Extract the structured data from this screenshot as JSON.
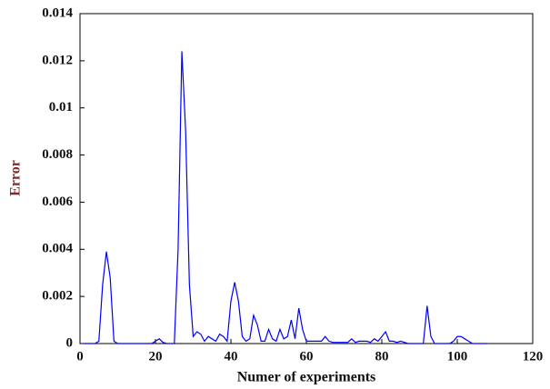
{
  "chart_data": {
    "type": "line",
    "xlabel": "Numer of experiments",
    "ylabel": "Error",
    "x": [
      1,
      2,
      3,
      4,
      5,
      6,
      7,
      8,
      9,
      10,
      11,
      12,
      13,
      14,
      15,
      16,
      17,
      18,
      19,
      20,
      21,
      22,
      23,
      24,
      25,
      26,
      27,
      28,
      29,
      30,
      31,
      32,
      33,
      34,
      35,
      36,
      37,
      38,
      39,
      40,
      41,
      42,
      43,
      44,
      45,
      46,
      47,
      48,
      49,
      50,
      51,
      52,
      53,
      54,
      55,
      56,
      57,
      58,
      59,
      60,
      61,
      62,
      63,
      64,
      65,
      66,
      67,
      68,
      69,
      70,
      71,
      72,
      73,
      74,
      75,
      76,
      77,
      78,
      79,
      80,
      81,
      82,
      83,
      84,
      85,
      86,
      87,
      88,
      89,
      90,
      91,
      92,
      93,
      94,
      95,
      96,
      97,
      98,
      99,
      100,
      101,
      102,
      103,
      104,
      105,
      106,
      107,
      108
    ],
    "series": [
      {
        "color": "#0000ff",
        "values": [
          0,
          0,
          0,
          0,
          0.0001,
          0.0025,
          0.0039,
          0.0028,
          0.0001,
          0,
          0,
          0,
          0,
          0,
          0,
          0,
          0,
          0,
          0,
          0.0001,
          0.0002,
          5e-05,
          0,
          0,
          0,
          0.004,
          0.0124,
          0.009,
          0.0025,
          0.0003,
          0.0005,
          0.0004,
          0.0001,
          0.0003,
          0.0002,
          0.0001,
          0.0004,
          0.0003,
          0.0001,
          0.0018,
          0.0026,
          0.0018,
          0.0003,
          0.0001,
          0.0002,
          0.0012,
          0.0008,
          0.0001,
          0.0001,
          0.0006,
          0.0002,
          0.0001,
          0.0006,
          0.0002,
          0.0003,
          0.001,
          0.0002,
          0.0015,
          0.0006,
          0.0001,
          0.0001,
          0.0001,
          0.0001,
          0.0001,
          0.0003,
          0.0001,
          5e-05,
          5e-05,
          5e-05,
          5e-05,
          5e-05,
          0.0002,
          5e-05,
          0.0001,
          0.0001,
          0.0001,
          5e-05,
          0.0002,
          0.0001,
          0.0003,
          0.0005,
          0.0001,
          0.0001,
          5e-05,
          0.0001,
          5e-05,
          0,
          0,
          0,
          0,
          0,
          0.0016,
          0.0003,
          0,
          0,
          0,
          0,
          0,
          0.0001,
          0.0003,
          0.0003,
          0.0002,
          0.0001,
          0,
          0,
          0,
          0,
          0
        ]
      }
    ],
    "xlim": [
      0,
      120
    ],
    "xticks": [
      0,
      20,
      40,
      60,
      80,
      100,
      120
    ],
    "ylim": [
      0,
      0.014
    ],
    "yticks": [
      0,
      0.002,
      0.004,
      0.006,
      0.008,
      0.01,
      0.012,
      0.014
    ]
  }
}
